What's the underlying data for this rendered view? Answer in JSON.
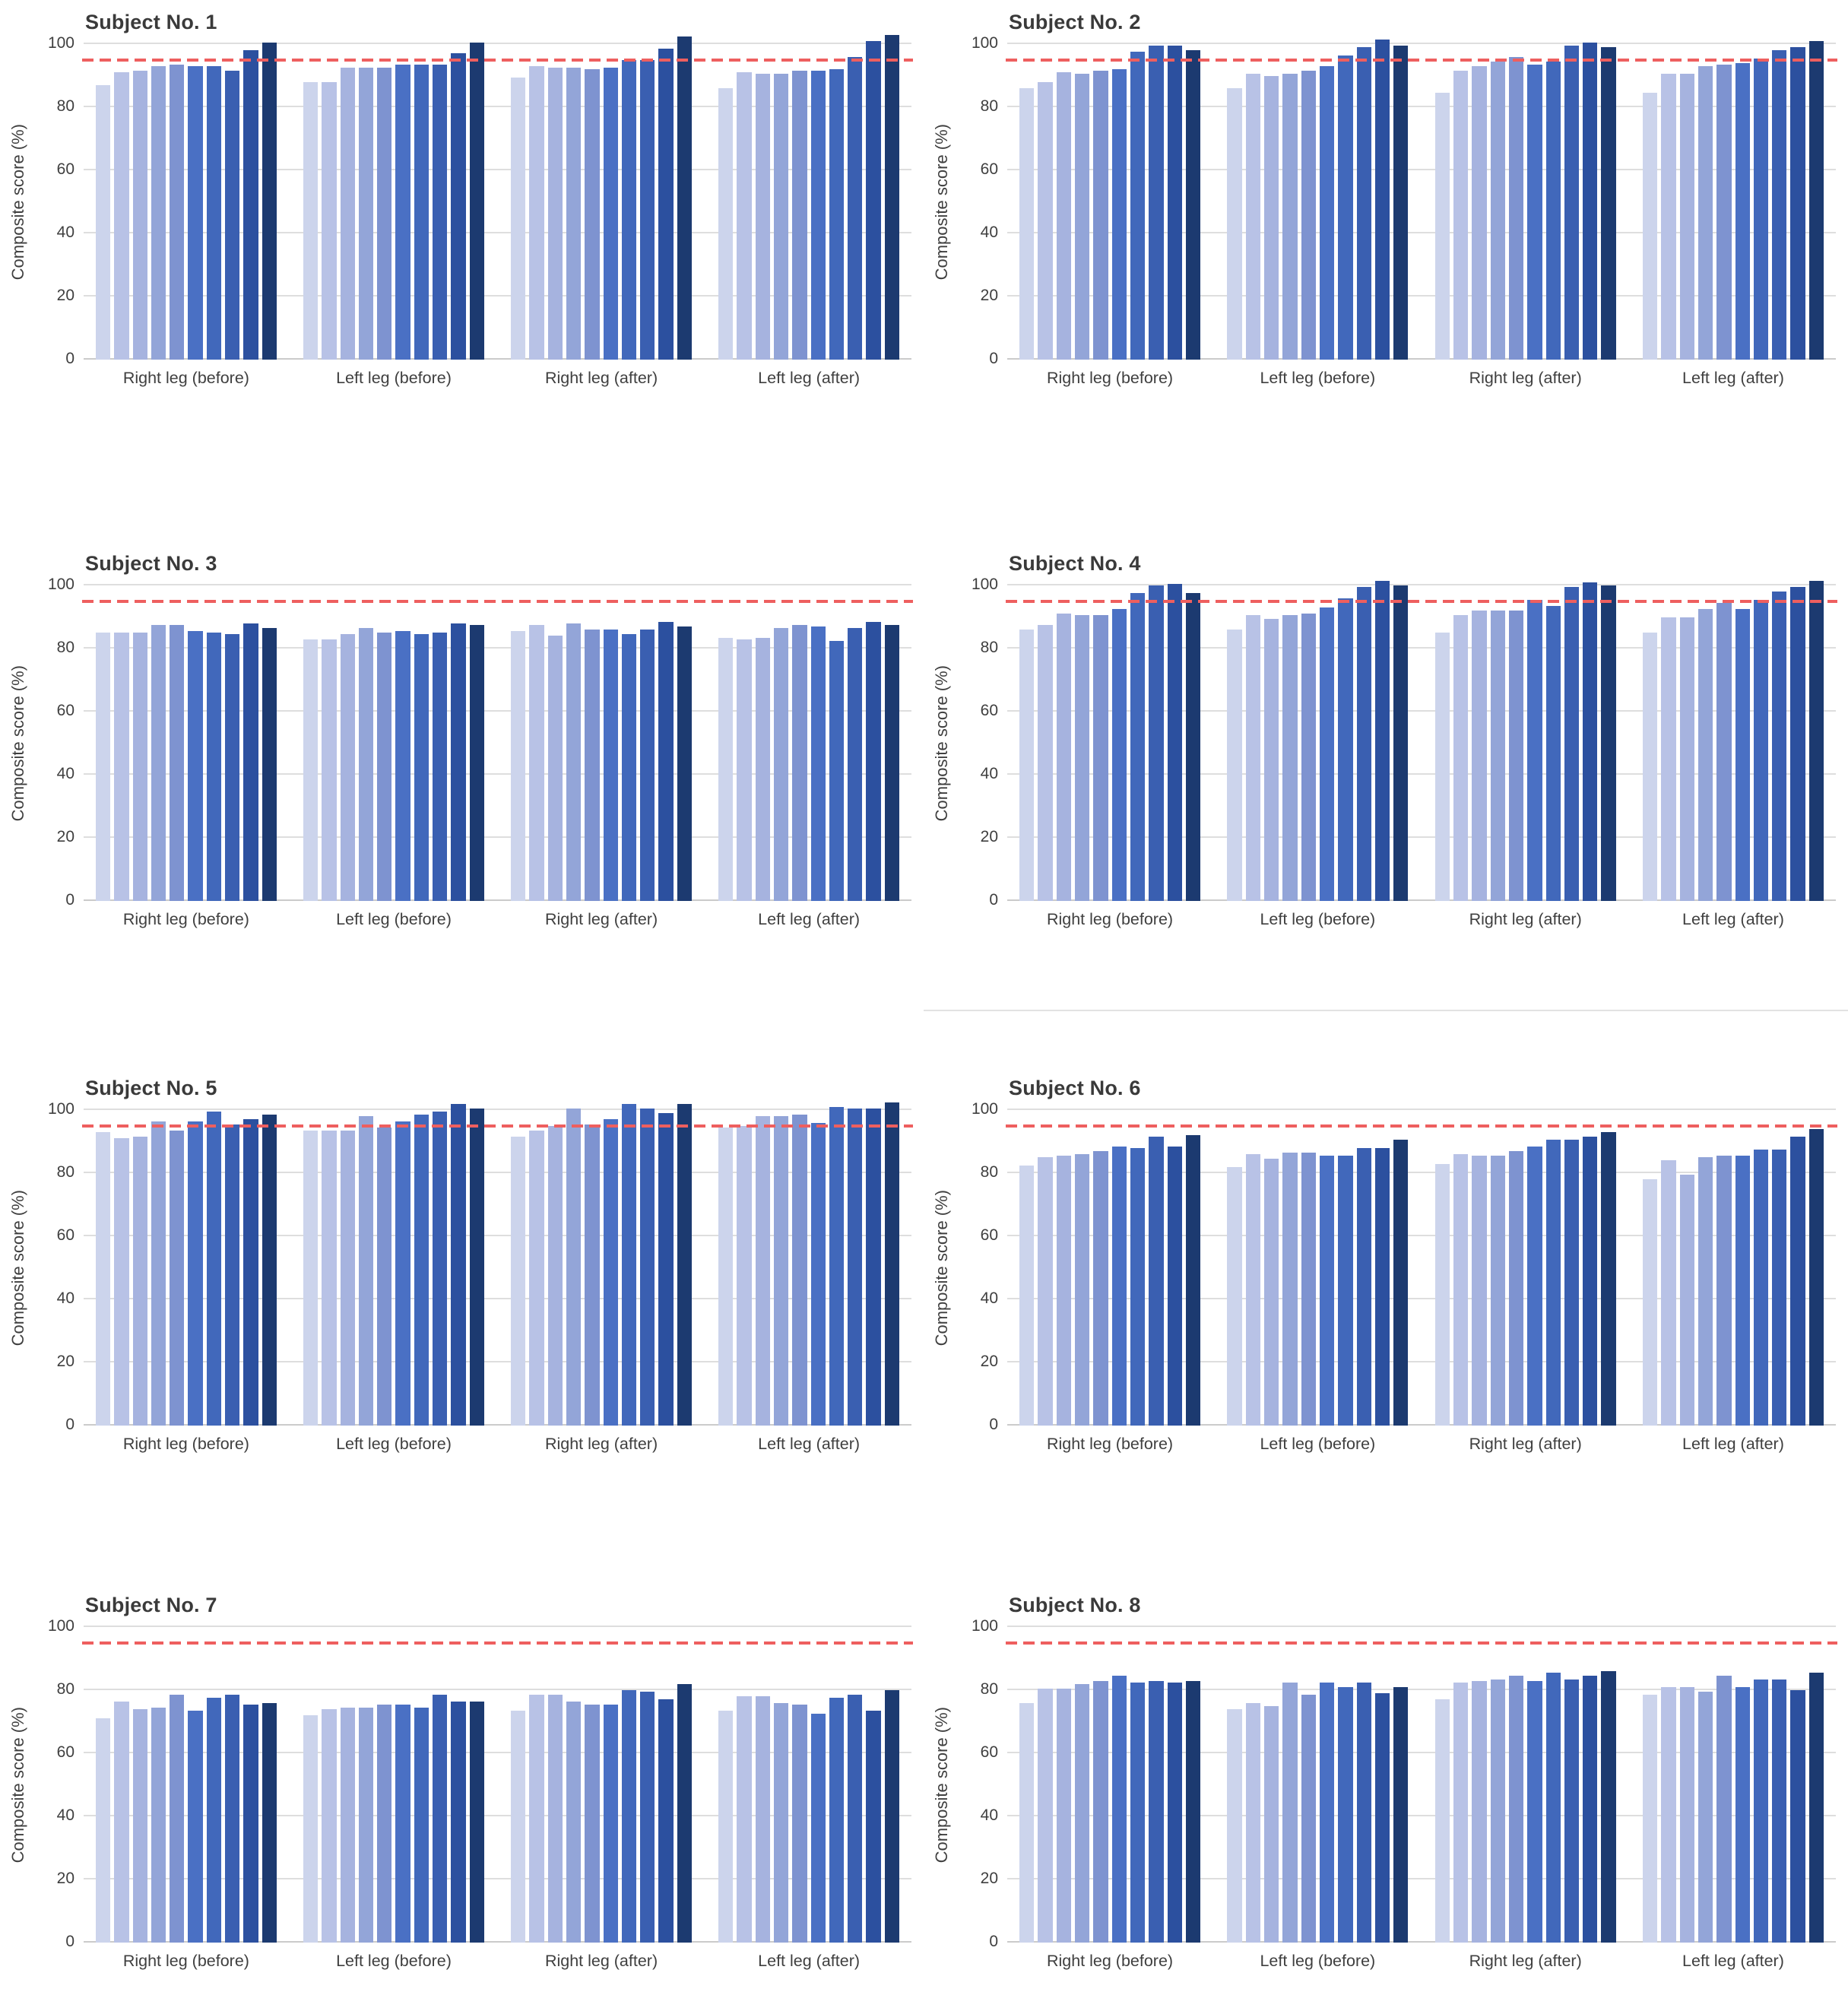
{
  "figure": {
    "gridline_color": "#dedede",
    "axis_line_color": "#cbcbcb",
    "title_color": "#3a3a3a"
  },
  "chart_data": {
    "type": "bar",
    "ylabel": "Composite score (%)",
    "ylim": [
      0,
      100
    ],
    "yticks": [
      0,
      20,
      40,
      60,
      80,
      100
    ],
    "grid": true,
    "categories": [
      "Right leg (before)",
      "Left leg (before)",
      "Right leg (after)",
      "Left leg (after)"
    ],
    "bars_per_group": 10,
    "bar_palette": [
      "#ccd4ec",
      "#b8c2e6",
      "#a6b3df",
      "#93a5d8",
      "#7e93d0",
      "#4a70c4",
      "#4168bb",
      "#3a5fb1",
      "#2c509f",
      "#1c3a70"
    ],
    "reference_line": {
      "value": 94.5,
      "color": "#ee5f5f",
      "style": "dashed"
    },
    "charts": [
      {
        "title": "Subject No. 1",
        "divider_below": false,
        "values": [
          [
            87,
            91,
            91.5,
            93,
            93.5,
            93,
            93,
            91.5,
            98,
            100.5
          ],
          [
            88,
            88,
            92.5,
            92.5,
            92.5,
            93.5,
            93.5,
            93.5,
            97,
            100.5
          ],
          [
            89.5,
            93,
            92.5,
            92.5,
            92,
            92.5,
            95,
            95,
            98.5,
            102.5
          ],
          [
            86,
            91,
            90.5,
            90.5,
            91.5,
            91.5,
            92,
            96,
            101,
            103
          ]
        ]
      },
      {
        "title": "Subject No. 2",
        "divider_below": false,
        "values": [
          [
            86,
            88,
            91,
            90.5,
            91.5,
            92,
            97.5,
            99.5,
            99.5,
            98
          ],
          [
            86,
            90.5,
            90,
            90.5,
            91.5,
            93,
            96.5,
            99,
            101.5,
            99.5
          ],
          [
            84.5,
            91.5,
            93,
            94.5,
            96,
            93.5,
            94.5,
            99.5,
            100.5,
            99
          ],
          [
            84.5,
            90.5,
            90.5,
            93,
            93.5,
            94,
            95.5,
            98,
            99,
            101
          ]
        ]
      },
      {
        "title": "Subject No. 3",
        "divider_below": false,
        "values": [
          [
            85,
            85,
            85,
            87.5,
            87.5,
            85.5,
            85,
            84.5,
            88,
            86.5
          ],
          [
            83,
            83,
            84.5,
            86.5,
            85,
            85.5,
            84.5,
            85,
            88,
            87.5
          ],
          [
            85.5,
            87.5,
            84,
            88,
            86,
            86,
            84.5,
            86,
            88.5,
            87
          ],
          [
            83.5,
            83,
            83.5,
            86.5,
            87.5,
            87,
            82.5,
            86.5,
            88.5,
            87.5
          ]
        ]
      },
      {
        "title": "Subject No. 4",
        "divider_below": true,
        "values": [
          [
            86,
            87.5,
            91,
            90.5,
            90.5,
            92.5,
            97.5,
            100,
            100.5,
            97.5
          ],
          [
            86,
            90.5,
            89.5,
            90.5,
            91,
            93,
            96,
            99.5,
            101.5,
            100
          ],
          [
            85,
            90.5,
            92,
            92,
            92,
            95.5,
            93.5,
            99.5,
            101,
            100
          ],
          [
            85,
            90,
            90,
            92.5,
            94.5,
            92.5,
            95.5,
            98,
            99.5,
            101.5
          ]
        ]
      },
      {
        "title": "Subject No. 5",
        "divider_below": false,
        "values": [
          [
            93,
            91,
            91.5,
            96.5,
            93.5,
            96.5,
            99.5,
            95.5,
            97,
            98.5
          ],
          [
            93.5,
            93.5,
            93.5,
            98,
            94.5,
            96.5,
            98.5,
            99.5,
            102,
            100.5
          ],
          [
            91.5,
            93.5,
            95,
            100.5,
            95.5,
            97,
            102,
            100.5,
            99,
            102
          ],
          [
            94.5,
            95,
            98,
            98,
            98.5,
            96,
            101,
            100.5,
            100.5,
            102.5
          ]
        ]
      },
      {
        "title": "Subject No. 6",
        "divider_below": false,
        "values": [
          [
            82.5,
            85,
            85.5,
            86,
            87,
            88.5,
            88,
            91.5,
            88.5,
            92
          ],
          [
            82,
            86,
            84.5,
            86.5,
            86.5,
            85.5,
            85.5,
            88,
            88,
            90.5
          ],
          [
            83,
            86,
            85.5,
            85.5,
            87,
            88.5,
            90.5,
            90.5,
            91.5,
            93
          ],
          [
            78,
            84,
            79.5,
            85,
            85.5,
            85.5,
            87.5,
            87.5,
            91.5,
            94
          ]
        ]
      },
      {
        "title": "Subject No. 7",
        "divider_below": false,
        "values": [
          [
            71,
            76.5,
            74,
            74.5,
            78.5,
            73.5,
            77.5,
            78.5,
            75.5,
            76
          ],
          [
            72,
            74,
            74.5,
            74.5,
            75.5,
            75.5,
            74.5,
            78.5,
            76.5,
            76.5
          ],
          [
            73.5,
            78.5,
            78.5,
            76.5,
            75.5,
            75.5,
            80,
            79.5,
            77,
            82
          ],
          [
            73.5,
            78,
            78,
            76,
            75.5,
            72.5,
            77.5,
            78.5,
            73.5,
            80
          ]
        ]
      },
      {
        "title": "Subject No. 8",
        "divider_below": false,
        "values": [
          [
            76,
            80.5,
            80.5,
            82,
            83,
            84.5,
            82.5,
            83,
            82.5,
            83
          ],
          [
            74,
            76,
            75,
            82.5,
            78.5,
            82.5,
            81,
            82.5,
            79,
            81
          ],
          [
            77,
            82.5,
            83,
            83.5,
            84.5,
            83,
            85.5,
            83.5,
            84.5,
            86
          ],
          [
            78.5,
            81,
            81,
            79.5,
            84.5,
            81,
            83.5,
            83.5,
            80,
            85.5
          ]
        ]
      }
    ]
  }
}
